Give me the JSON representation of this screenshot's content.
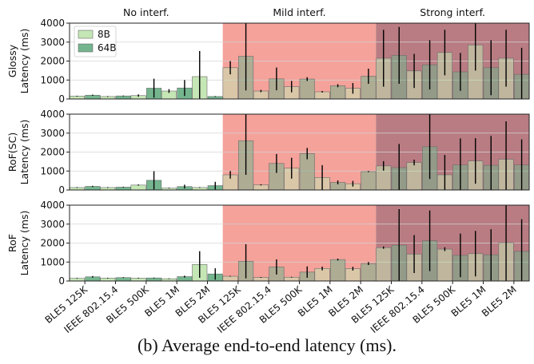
{
  "caption": "(b) Average end-to-end latency (ms).",
  "colors": {
    "series_8B": "#c5e6b5",
    "series_64B": "#74b58e",
    "mild_bg": "#f4a29a",
    "strong_bg": "#b87c82",
    "error_bar": "#000000"
  },
  "chart_data": {
    "type": "bar",
    "conditions": [
      "No interf.",
      "Mild interf.",
      "Strong interf."
    ],
    "groups": [
      "BLE5 125K",
      "IEEE 802.15.4",
      "BLE5 500K",
      "BLE5 1M",
      "BLE5 2M",
      "BLE5 125K",
      "IEEE 802.15.4",
      "BLE5 500K",
      "BLE5 1M",
      "BLE5 2M",
      "BLE5 125K",
      "IEEE 802.15.4",
      "BLE5 500K",
      "BLE5 1M",
      "BLE5 2M"
    ],
    "legend": [
      "8B",
      "64B"
    ],
    "legend_position": "upper-left of top panel",
    "ylim": [
      0,
      4000
    ],
    "yticks": [
      "0",
      "1000",
      "2000",
      "3000",
      "4000"
    ],
    "grid": true,
    "panels": [
      {
        "name": "Glossy",
        "ylabel": "Latency (ms)",
        "values_8B": [
          150,
          130,
          180,
          420,
          1180,
          1650,
          420,
          650,
          380,
          560,
          2150,
          1480,
          2450,
          2850,
          2150
        ],
        "err_8B": [
          20,
          20,
          60,
          100,
          1350,
          350,
          60,
          300,
          40,
          280,
          1500,
          900,
          1200,
          1350,
          1500
        ],
        "values_64B": [
          200,
          160,
          570,
          580,
          130,
          2250,
          1060,
          1050,
          700,
          1200,
          2300,
          1800,
          1430,
          1650,
          1300
        ],
        "err_64B": [
          30,
          20,
          500,
          420,
          20,
          1800,
          600,
          100,
          80,
          400,
          1500,
          1300,
          1000,
          1450,
          1400
        ]
      },
      {
        "name": "RoF(SC)",
        "ylabel": "Latency (ms)",
        "values_8B": [
          130,
          130,
          260,
          100,
          130,
          800,
          270,
          1150,
          660,
          330,
          1270,
          1450,
          800,
          1530,
          1620
        ],
        "err_8B": [
          20,
          20,
          30,
          20,
          20,
          200,
          30,
          550,
          650,
          150,
          250,
          150,
          1050,
          1200,
          2000
        ],
        "values_64B": [
          190,
          150,
          510,
          180,
          230,
          2600,
          1400,
          1920,
          400,
          970,
          1180,
          2280,
          1320,
          1300,
          1320
        ],
        "err_64B": [
          30,
          20,
          480,
          100,
          200,
          1800,
          500,
          300,
          100,
          30,
          1250,
          1700,
          1400,
          1550,
          1350
        ]
      },
      {
        "name": "RoF",
        "ylabel": "Latency (ms)",
        "values_8B": [
          140,
          150,
          150,
          120,
          870,
          250,
          190,
          200,
          660,
          650,
          1760,
          1420,
          1680,
          1440,
          2020
        ],
        "err_8B": [
          20,
          20,
          20,
          20,
          700,
          20,
          20,
          20,
          100,
          100,
          60,
          1000,
          100,
          1200,
          2000
        ],
        "values_64B": [
          220,
          180,
          160,
          230,
          370,
          1040,
          740,
          470,
          1130,
          920,
          1890,
          2120,
          1350,
          1380,
          1560
        ],
        "err_64B": [
          40,
          20,
          20,
          50,
          300,
          900,
          400,
          300,
          50,
          80,
          1900,
          1600,
          1150,
          1350,
          1700
        ]
      }
    ]
  }
}
